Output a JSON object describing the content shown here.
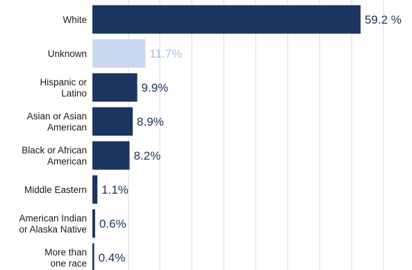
{
  "chart_data": {
    "type": "bar",
    "orientation": "horizontal",
    "title": "",
    "xlabel": "",
    "ylabel": "",
    "xlim": [
      0,
      60
    ],
    "grid": true,
    "categories": [
      "White",
      "Unknown",
      "Hispanic or Latino",
      "Asian or Asian American",
      "Black or African American",
      "Middle Eastern",
      "American Indian or Alaska Native",
      "More than one race"
    ],
    "category_lines": [
      [
        "White"
      ],
      [
        "Unknown"
      ],
      [
        "Hispanic or",
        "Latino"
      ],
      [
        "Asian or Asian",
        "American"
      ],
      [
        "Black or African",
        "American"
      ],
      [
        "Middle Eastern"
      ],
      [
        "American Indian",
        "or Alaska Native"
      ],
      [
        "More than",
        "one race"
      ]
    ],
    "values": [
      59.2,
      11.7,
      9.9,
      8.9,
      8.2,
      1.1,
      0.6,
      0.4
    ],
    "value_labels": [
      "59.2 %",
      "11.7%",
      "9.9%",
      "8.9%",
      "8.2%",
      "1.1%",
      "0.6%",
      "0.4%"
    ],
    "colors": [
      "#1b3560",
      "#c9d8ee",
      "#1b3560",
      "#1b3560",
      "#1b3560",
      "#1b3560",
      "#1b3560",
      "#1b3560"
    ],
    "label_colors": [
      "#1b3560",
      "#a9bfe0",
      "#1b3560",
      "#1b3560",
      "#1b3560",
      "#1b3560",
      "#1b3560",
      "#1b3560"
    ]
  }
}
